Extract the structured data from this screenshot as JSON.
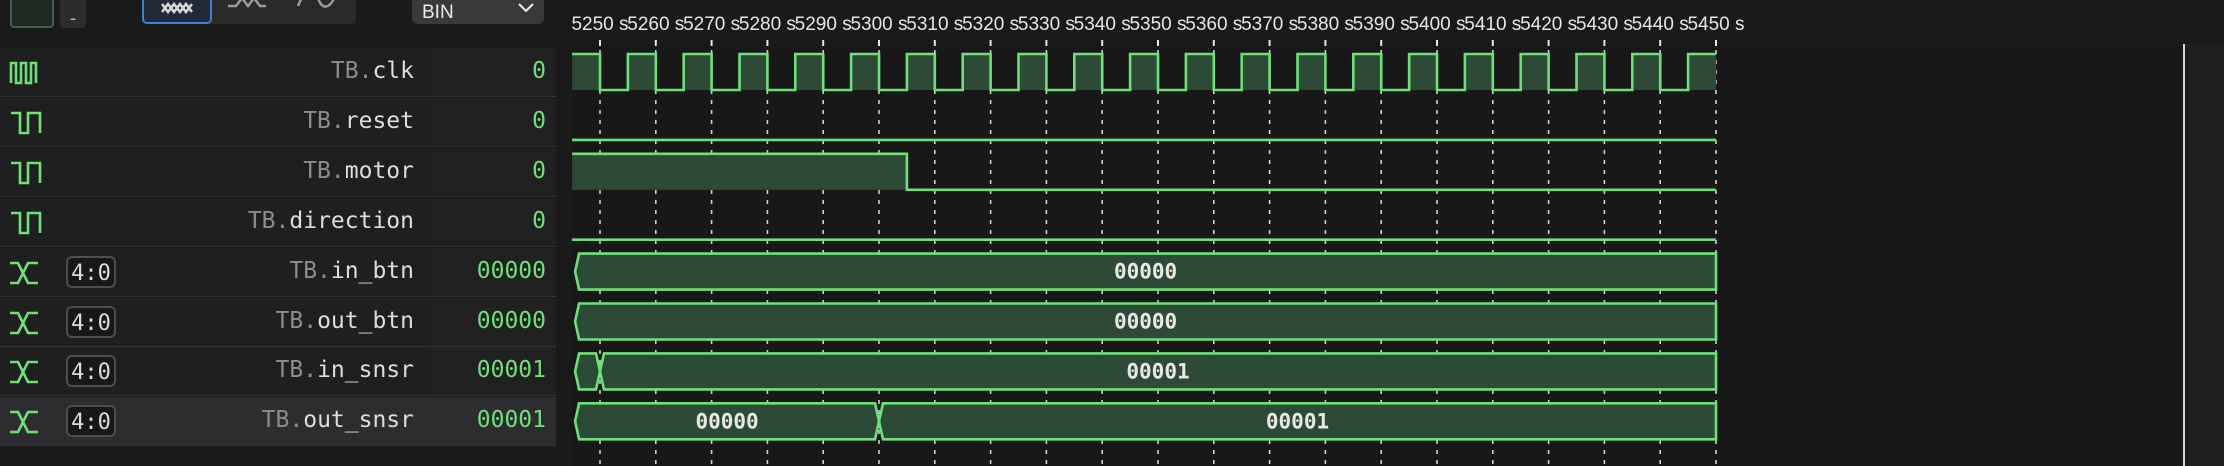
{
  "toolbar": {
    "stepper_minus": "-",
    "display_format": "BIN",
    "style_buttons": [
      {
        "icon": "bus-style-icon",
        "active": true
      },
      {
        "icon": "step-style-icon",
        "active": false
      },
      {
        "icon": "analog-style-icon",
        "active": false
      }
    ]
  },
  "timeline": {
    "ruler_unit": "s",
    "ticks": [
      "5250 s",
      "5260 s",
      "5270 s",
      "5280 s",
      "5290 s",
      "5300 s",
      "5310 s",
      "5320 s",
      "5330 s",
      "5340 s",
      "5350 s",
      "5360 s",
      "5370 s",
      "5380 s",
      "5390 s",
      "5400 s",
      "5410 s",
      "5420 s",
      "5430 s",
      "5440 s",
      "5450 s"
    ],
    "visible_range": [
      5245,
      5450
    ],
    "clock_period": 10,
    "waveform_color": "#6ee07a",
    "fill_color": "#2c4a35"
  },
  "signals": [
    {
      "icon": "clock-signal-icon",
      "scope": "TB.",
      "name": "clk",
      "value": "0",
      "selected": false,
      "type": "clock",
      "first_rise": 5250
    },
    {
      "icon": "bit-signal-icon",
      "scope": "TB.",
      "name": "reset",
      "value": "0",
      "selected": false,
      "type": "bit",
      "transitions": []
    },
    {
      "icon": "bit-signal-icon",
      "scope": "TB.",
      "name": "motor",
      "value": "0",
      "selected": false,
      "type": "bit",
      "initial": 1,
      "transitions": [
        {
          "t": 5305,
          "v": 0
        }
      ]
    },
    {
      "icon": "bit-signal-icon",
      "scope": "TB.",
      "name": "direction",
      "value": "0",
      "selected": false,
      "type": "bit",
      "transitions": []
    },
    {
      "icon": "bus-signal-icon",
      "width": "4:0",
      "scope": "TB.",
      "name": "in_btn",
      "value": "00000",
      "selected": false,
      "type": "bus",
      "segments": [
        {
          "start": 5245,
          "end": 5450,
          "label": "00000"
        }
      ]
    },
    {
      "icon": "bus-signal-icon",
      "width": "4:0",
      "scope": "TB.",
      "name": "out_btn",
      "value": "00000",
      "selected": false,
      "type": "bus",
      "segments": [
        {
          "start": 5245,
          "end": 5450,
          "label": "00000"
        }
      ]
    },
    {
      "icon": "bus-signal-icon",
      "width": "4:0",
      "scope": "TB.",
      "name": "in_snsr",
      "value": "00001",
      "selected": false,
      "type": "bus",
      "segments": [
        {
          "start": 5245,
          "end": 5250,
          "label": ""
        },
        {
          "start": 5250,
          "end": 5450,
          "label": "00001"
        }
      ]
    },
    {
      "icon": "bus-signal-icon",
      "width": "4:0",
      "scope": "TB.",
      "name": "out_snsr",
      "value": "00001",
      "selected": true,
      "type": "bus",
      "segments": [
        {
          "start": 5245,
          "end": 5300,
          "label": "00000"
        },
        {
          "start": 5300,
          "end": 5450,
          "label": "00001"
        }
      ]
    }
  ]
}
